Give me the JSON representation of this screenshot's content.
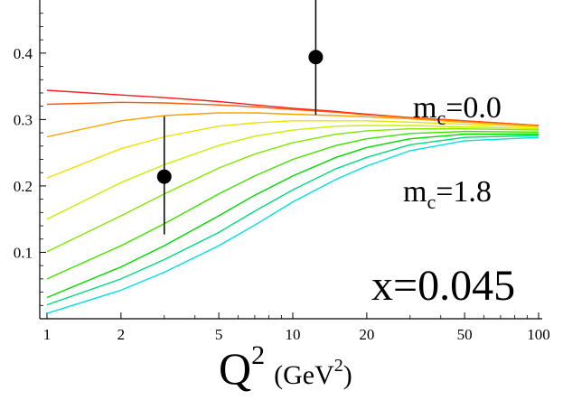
{
  "chart_data": {
    "type": "line",
    "title": "",
    "xlabel_main": "Q",
    "xlabel_main_sup": "2",
    "xlabel_unit_open": "(GeV",
    "xlabel_unit_sup": "2",
    "xlabel_unit_close": ")",
    "ylabel": "",
    "x_scale": "log",
    "xlim": [
      1,
      100
    ],
    "ylim": [
      0,
      0.48
    ],
    "grid": false,
    "x_ticks": [
      1,
      2,
      5,
      10,
      20,
      50,
      100
    ],
    "x_tick_labels": [
      "1",
      "2",
      "5",
      "10",
      "20",
      "50",
      "100"
    ],
    "y_ticks": [
      0.1,
      0.2,
      0.3,
      0.4
    ],
    "y_tick_labels": [
      "0.1",
      "0.2",
      "0.3",
      "0.4"
    ],
    "x": [
      1,
      2,
      3,
      5,
      7,
      10,
      15,
      20,
      30,
      50,
      100
    ],
    "series": [
      {
        "color": "#ff1a1a",
        "values": [
          0.344,
          0.337,
          0.333,
          0.327,
          0.322,
          0.317,
          0.312,
          0.308,
          0.303,
          0.298,
          0.291
        ]
      },
      {
        "color": "#ff5a00",
        "values": [
          0.323,
          0.326,
          0.325,
          0.322,
          0.319,
          0.315,
          0.311,
          0.307,
          0.303,
          0.298,
          0.291
        ]
      },
      {
        "color": "#ffa000",
        "values": [
          0.274,
          0.298,
          0.306,
          0.31,
          0.31,
          0.308,
          0.306,
          0.304,
          0.301,
          0.296,
          0.29
        ]
      },
      {
        "color": "#f0e000",
        "values": [
          0.212,
          0.256,
          0.274,
          0.29,
          0.295,
          0.298,
          0.298,
          0.298,
          0.296,
          0.293,
          0.288
        ]
      },
      {
        "color": "#c8f000",
        "values": [
          0.15,
          0.205,
          0.232,
          0.261,
          0.275,
          0.284,
          0.29,
          0.291,
          0.291,
          0.289,
          0.286
        ]
      },
      {
        "color": "#80e800",
        "values": [
          0.101,
          0.155,
          0.188,
          0.227,
          0.248,
          0.265,
          0.278,
          0.283,
          0.286,
          0.286,
          0.284
        ]
      },
      {
        "color": "#40e000",
        "values": [
          0.06,
          0.11,
          0.143,
          0.188,
          0.215,
          0.24,
          0.261,
          0.271,
          0.279,
          0.282,
          0.281
        ]
      },
      {
        "color": "#00d800",
        "values": [
          0.032,
          0.078,
          0.11,
          0.155,
          0.186,
          0.215,
          0.243,
          0.258,
          0.271,
          0.278,
          0.278
        ]
      },
      {
        "color": "#00dc78",
        "values": [
          0.021,
          0.06,
          0.089,
          0.13,
          0.162,
          0.194,
          0.226,
          0.243,
          0.262,
          0.273,
          0.276
        ]
      },
      {
        "color": "#00e0e0",
        "values": [
          0.008,
          0.043,
          0.07,
          0.11,
          0.141,
          0.176,
          0.21,
          0.23,
          0.253,
          0.268,
          0.273
        ]
      }
    ],
    "data_points": [
      {
        "x": 3.0,
        "y": 0.214,
        "err_low": 0.127,
        "err_high": 0.305
      },
      {
        "x": 12.4,
        "y": 0.394,
        "err_low": 0.307,
        "err_high": 0.484
      }
    ],
    "marker_color": "#000000",
    "annotations": {
      "mc_top_base": "m",
      "mc_top_sub": "c",
      "mc_top_value": "=0.0",
      "mc_bottom_base": "m",
      "mc_bottom_sub": "c",
      "mc_bottom_value": "=1.8",
      "x_value": "x=0.045"
    }
  }
}
